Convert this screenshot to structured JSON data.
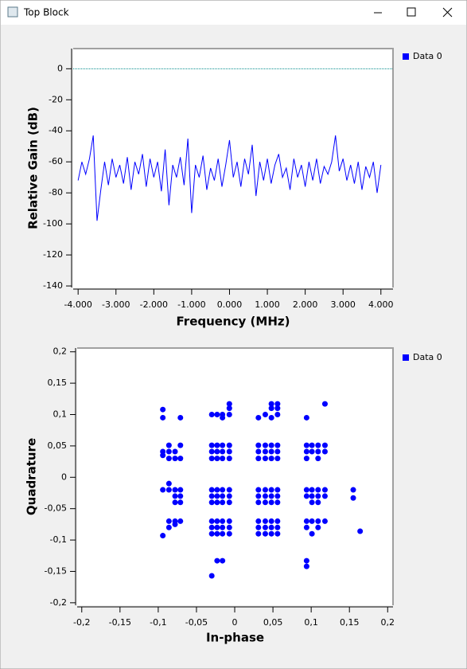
{
  "window": {
    "title": "Top Block"
  },
  "chart_data": [
    {
      "type": "line",
      "xlabel": "Frequency (MHz)",
      "ylabel": "Relative Gain (dB)",
      "x": [
        -4,
        -3.9,
        -3.8,
        -3.7,
        -3.6,
        -3.5,
        -3.4,
        -3.3,
        -3.2,
        -3.1,
        -3,
        -2.9,
        -2.8,
        -2.7,
        -2.6,
        -2.5,
        -2.4,
        -2.3,
        -2.2,
        -2.1,
        -2,
        -1.9,
        -1.8,
        -1.7,
        -1.6,
        -1.5,
        -1.4,
        -1.3,
        -1.2,
        -1.1,
        -1,
        -0.9,
        -0.8,
        -0.7,
        -0.6,
        -0.5,
        -0.4,
        -0.3,
        -0.2,
        -0.1,
        0,
        0.1,
        0.2,
        0.3,
        0.4,
        0.5,
        0.6,
        0.7,
        0.8,
        0.9,
        1,
        1.1,
        1.2,
        1.3,
        1.4,
        1.5,
        1.6,
        1.7,
        1.8,
        1.9,
        2,
        2.1,
        2.2,
        2.3,
        2.4,
        2.5,
        2.6,
        2.7,
        2.8,
        2.9,
        3,
        3.1,
        3.2,
        3.3,
        3.4,
        3.5,
        3.6,
        3.7,
        3.8,
        3.9,
        4
      ],
      "series": [
        {
          "name": "Data 0",
          "color": "#0000ff",
          "values": [
            -72,
            -60,
            -68,
            -58,
            -43,
            -98,
            -78,
            -60,
            -75,
            -58,
            -70,
            -62,
            -74,
            -57,
            -78,
            -60,
            -68,
            -55,
            -76,
            -58,
            -70,
            -60,
            -79,
            -52,
            -88,
            -62,
            -70,
            -57,
            -75,
            -45,
            -93,
            -62,
            -70,
            -56,
            -78,
            -64,
            -72,
            -58,
            -76,
            -62,
            -46,
            -70,
            -60,
            -76,
            -58,
            -68,
            -49,
            -82,
            -60,
            -72,
            -58,
            -74,
            -62,
            -55,
            -70,
            -64,
            -78,
            -58,
            -70,
            -62,
            -76,
            -60,
            -72,
            -58,
            -74,
            -63,
            -68,
            -60,
            -43,
            -66,
            -58,
            -72,
            -62,
            -74,
            -60,
            -78,
            -63,
            -70,
            -60,
            -80,
            -62
          ]
        }
      ],
      "xlim": [
        -4.13,
        4.32
      ],
      "ylim": [
        -141,
        13
      ],
      "xticks": [
        {
          "value": -4,
          "label": "-4.000"
        },
        {
          "value": -3,
          "label": "-3.000"
        },
        {
          "value": -2,
          "label": "-2.000"
        },
        {
          "value": -1,
          "label": "-1.000"
        },
        {
          "value": 0,
          "label": "0.000"
        },
        {
          "value": 1,
          "label": "1.000"
        },
        {
          "value": 2,
          "label": "2.000"
        },
        {
          "value": 3,
          "label": "3.000"
        },
        {
          "value": 4,
          "label": "4.000"
        }
      ],
      "yticks": [
        0,
        -20,
        -40,
        -60,
        -80,
        -100,
        -120,
        -140
      ],
      "reference_line": {
        "value": 0,
        "color": "#008b8b"
      },
      "legend": "right"
    },
    {
      "type": "scatter",
      "xlabel": "In-phase",
      "ylabel": "Quadrature",
      "x": [
        -0.03,
        -0.023,
        -0.016,
        -0.007,
        -0.03,
        -0.023,
        -0.016,
        -0.007,
        -0.03,
        -0.023,
        -0.016,
        -0.007,
        -0.03,
        -0.023,
        -0.016,
        -0.007,
        -0.03,
        -0.023,
        -0.016,
        -0.007,
        -0.03,
        -0.023,
        -0.016,
        -0.007,
        -0.03,
        -0.023,
        -0.016,
        -0.007,
        -0.03,
        -0.023,
        -0.016,
        -0.007,
        -0.03,
        -0.023,
        -0.016,
        -0.007,
        0.031,
        0.04,
        0.048,
        0.056,
        0.031,
        0.04,
        0.048,
        0.056,
        0.031,
        0.04,
        0.048,
        0.056,
        0.031,
        0.04,
        0.048,
        0.056,
        0.031,
        0.04,
        0.048,
        0.056,
        0.031,
        0.04,
        0.048,
        0.056,
        0.031,
        0.04,
        0.048,
        0.056,
        0.031,
        0.04,
        0.048,
        0.056,
        0.031,
        0.04,
        0.048,
        0.056,
        0.094,
        0.094,
        0.094,
        0.101,
        0.101,
        0.109,
        0.109,
        0.109,
        0.118,
        0.118,
        0.094,
        0.101,
        0.109,
        0.118,
        0.094,
        0.101,
        0.109,
        0.118,
        0.101,
        0.109,
        0.094,
        0.094,
        0.101,
        0.109,
        0.118,
        0.109,
        0.101,
        0.094,
        0.118,
        0.094,
        0.094,
        0.155,
        0.155,
        0.164,
        -0.094,
        -0.094,
        -0.071,
        -0.094,
        -0.086,
        -0.086,
        -0.086,
        -0.078,
        -0.078,
        -0.071,
        -0.071,
        -0.094,
        -0.094,
        -0.086,
        -0.078,
        -0.071,
        -0.078,
        -0.071,
        -0.078,
        -0.071,
        -0.086,
        -0.094,
        -0.086,
        -0.086,
        -0.078,
        -0.071,
        -0.078,
        -0.03,
        -0.023,
        -0.016,
        -0.016,
        -0.007,
        -0.007,
        -0.007,
        -0.03,
        -0.023,
        -0.016,
        0.031,
        0.04,
        0.048,
        0.048,
        0.048,
        0.056,
        0.056,
        0.056
      ],
      "series": [
        {
          "name": "Data 0",
          "color": "#0000ff",
          "values": [
            0.051,
            0.051,
            0.051,
            0.051,
            0.041,
            0.041,
            0.041,
            0.041,
            0.03,
            0.03,
            0.03,
            0.03,
            -0.02,
            -0.02,
            -0.02,
            -0.02,
            -0.03,
            -0.03,
            -0.03,
            -0.03,
            -0.04,
            -0.04,
            -0.04,
            -0.04,
            -0.07,
            -0.07,
            -0.07,
            -0.07,
            -0.08,
            -0.08,
            -0.08,
            -0.08,
            -0.09,
            -0.09,
            -0.09,
            -0.09,
            0.051,
            0.051,
            0.051,
            0.051,
            0.041,
            0.041,
            0.041,
            0.041,
            0.03,
            0.03,
            0.03,
            0.03,
            -0.02,
            -0.02,
            -0.02,
            -0.02,
            -0.03,
            -0.03,
            -0.03,
            -0.03,
            -0.04,
            -0.04,
            -0.04,
            -0.04,
            -0.07,
            -0.07,
            -0.07,
            -0.07,
            -0.08,
            -0.08,
            -0.08,
            -0.08,
            -0.09,
            -0.09,
            -0.09,
            -0.09,
            0.051,
            0.041,
            0.03,
            0.041,
            0.051,
            0.051,
            0.041,
            0.03,
            0.051,
            0.041,
            -0.02,
            -0.02,
            -0.02,
            -0.02,
            -0.03,
            -0.03,
            -0.03,
            -0.03,
            -0.04,
            -0.04,
            -0.07,
            -0.08,
            -0.07,
            -0.07,
            -0.07,
            -0.08,
            -0.09,
            0.095,
            0.117,
            -0.133,
            -0.142,
            -0.02,
            -0.033,
            -0.086,
            0.108,
            0.095,
            0.095,
            0.041,
            0.051,
            0.041,
            0.03,
            0.041,
            0.03,
            0.051,
            0.03,
            0.035,
            -0.02,
            -0.02,
            -0.02,
            -0.02,
            -0.03,
            -0.03,
            -0.04,
            -0.04,
            -0.01,
            -0.093,
            -0.08,
            -0.07,
            -0.07,
            -0.07,
            -0.075,
            0.1,
            0.1,
            0.095,
            0.1,
            0.1,
            0.11,
            0.117,
            -0.157,
            -0.133,
            -0.133,
            0.095,
            0.1,
            0.095,
            0.11,
            0.117,
            0.1,
            0.11,
            0.117
          ]
        }
      ],
      "xlim": [
        -0.206,
        0.207
      ],
      "ylim": [
        -0.204,
        0.206
      ],
      "xticks": [
        {
          "value": -0.2,
          "label": "-0,2"
        },
        {
          "value": -0.15,
          "label": "-0,15"
        },
        {
          "value": -0.1,
          "label": "-0,1"
        },
        {
          "value": -0.05,
          "label": "-0,05"
        },
        0,
        {
          "value": 0.05,
          "label": "0,05"
        },
        {
          "value": 0.1,
          "label": "0,1"
        },
        {
          "value": 0.15,
          "label": "0,15"
        },
        {
          "value": 0.2,
          "label": "0,2"
        }
      ],
      "yticks": [
        {
          "value": 0.2,
          "label": "0,2"
        },
        {
          "value": 0.15,
          "label": "0,15"
        },
        {
          "value": 0.1,
          "label": "0,1"
        },
        {
          "value": 0.05,
          "label": "0,05"
        },
        0,
        {
          "value": -0.05,
          "label": "-0,05"
        },
        {
          "value": -0.1,
          "label": "-0,1"
        },
        {
          "value": -0.15,
          "label": "-0,15"
        },
        {
          "value": -0.2,
          "label": "-0,2"
        }
      ],
      "legend": "right"
    }
  ]
}
